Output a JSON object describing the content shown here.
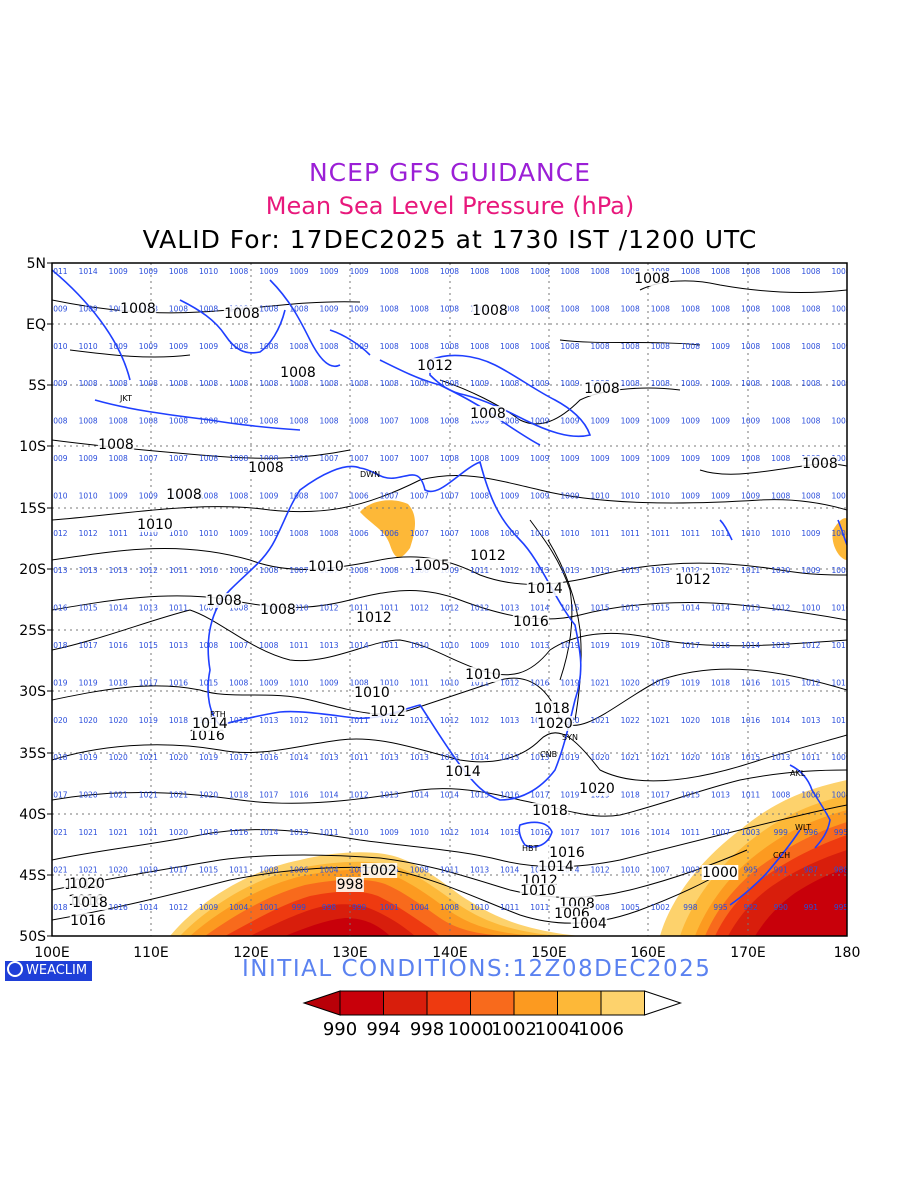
{
  "header": {
    "title": "NCEP GFS GUIDANCE",
    "subtitle": "Mean Sea Level Pressure (hPa)",
    "valid": "VALID For: 17DEC2025 at 1730 IST /1200 UTC"
  },
  "footer": {
    "credit": "WEACLIM",
    "initial_conditions": "INITIAL  CONDITIONS:12Z08DEC2025"
  },
  "axes": {
    "lat_labels": [
      "5N",
      "EQ",
      "5S",
      "10S",
      "15S",
      "20S",
      "25S",
      "30S",
      "35S",
      "40S",
      "45S",
      "50S"
    ],
    "lon_labels": [
      "100E",
      "110E",
      "120E",
      "130E",
      "140E",
      "150E",
      "160E",
      "170E",
      "180"
    ]
  },
  "colorbar": {
    "labels": [
      "990",
      "994",
      "998",
      "1000",
      "1002",
      "1004",
      "1006"
    ],
    "colors": [
      "#c8000a",
      "#d81e0c",
      "#ee3a10",
      "#f86a1c",
      "#fc9a20",
      "#fdb838",
      "#fdd26c"
    ]
  },
  "colors": {
    "coast": "#1f3fff",
    "grid_value_text": "#2a4ddb",
    "contour": "#000000"
  },
  "contour_labels": [
    "1008",
    "1008",
    "1008",
    "1008",
    "1008",
    "1008",
    "1008",
    "1012",
    "1008",
    "1008",
    "1010",
    "1008",
    "1008",
    "1005",
    "1012",
    "1010",
    "1014",
    "1012",
    "1012",
    "1016",
    "1008",
    "1008",
    "1010",
    "1010",
    "1012",
    "1018",
    "1020",
    "1014",
    "1016",
    "1014",
    "1018",
    "1016",
    "1014",
    "1020",
    "1016",
    "1014",
    "1012",
    "1010",
    "1008",
    "1006",
    "1004",
    "1002",
    "1000",
    "998",
    "1020",
    "1018",
    "1016",
    "1000"
  ],
  "place_labels": [
    "JKT",
    "DWN",
    "PTH",
    "SYN",
    "CNB",
    "HBT",
    "AKL",
    "WLT",
    "CCH"
  ],
  "grid_value_rows": [
    [
      "1011",
      "1014",
      "1009",
      "1009",
      "1008",
      "1010",
      "1008",
      "1009",
      "1009",
      "1009",
      "1009",
      "1008",
      "1008",
      "1008",
      "1008",
      "1008",
      "1008",
      "1008",
      "1008",
      "1008",
      "1008",
      "1008",
      "1008",
      "1008",
      "1008",
      "1008",
      "1008"
    ],
    [
      "1009",
      "1009",
      "1008",
      "1008",
      "1008",
      "1008",
      "1008",
      "1008",
      "1008",
      "1009",
      "1009",
      "1008",
      "1008",
      "1008",
      "1008",
      "1008",
      "1008",
      "1008",
      "1008",
      "1008",
      "1008",
      "1008",
      "1008",
      "1008",
      "1008",
      "1008",
      "1008"
    ],
    [
      "1010",
      "1010",
      "1009",
      "1009",
      "1009",
      "1009",
      "1008",
      "1008",
      "1008",
      "1008",
      "1009",
      "1008",
      "1008",
      "1008",
      "1008",
      "1008",
      "1008",
      "1008",
      "1008",
      "1008",
      "1008",
      "1008",
      "1009",
      "1008",
      "1008",
      "1008",
      "1009"
    ],
    [
      "1009",
      "1008",
      "1008",
      "1008",
      "1008",
      "1008",
      "1008",
      "1008",
      "1008",
      "1008",
      "1008",
      "1008",
      "1008",
      "1008",
      "1009",
      "1008",
      "1009",
      "1009",
      "1008",
      "1008",
      "1008",
      "1009",
      "1009",
      "1008",
      "1008",
      "1008",
      "1009"
    ],
    [
      "1008",
      "1008",
      "1008",
      "1008",
      "1008",
      "1008",
      "1008",
      "1008",
      "1008",
      "1008",
      "1008",
      "1007",
      "1008",
      "1008",
      "1009",
      "1008",
      "1009",
      "1009",
      "1009",
      "1009",
      "1009",
      "1009",
      "1009",
      "1009",
      "1008",
      "1008",
      "1008"
    ],
    [
      "1009",
      "1009",
      "1008",
      "1007",
      "1007",
      "1008",
      "1008",
      "1008",
      "1008",
      "1007",
      "1007",
      "1007",
      "1007",
      "1008",
      "1008",
      "1009",
      "1009",
      "1009",
      "1009",
      "1009",
      "1009",
      "1009",
      "1009",
      "1008",
      "1008",
      "1008",
      "1008"
    ],
    [
      "1010",
      "1010",
      "1009",
      "1009",
      "1009",
      "1008",
      "1008",
      "1009",
      "1008",
      "1007",
      "1006",
      "1007",
      "1007",
      "1007",
      "1008",
      "1009",
      "1009",
      "1009",
      "1010",
      "1010",
      "1010",
      "1009",
      "1009",
      "1009",
      "1008",
      "1008",
      "1007"
    ],
    [
      "1012",
      "1012",
      "1011",
      "1010",
      "1010",
      "1010",
      "1009",
      "1009",
      "1008",
      "1008",
      "1006",
      "1006",
      "1007",
      "1007",
      "1008",
      "1009",
      "1010",
      "1010",
      "1011",
      "1011",
      "1011",
      "1011",
      "1011",
      "1010",
      "1010",
      "1009",
      "1008"
    ],
    [
      "1013",
      "1013",
      "1013",
      "1012",
      "1011",
      "1010",
      "1009",
      "1008",
      "1007",
      "1007",
      "1008",
      "1008",
      "1008",
      "1009",
      "1011",
      "1012",
      "1013",
      "1013",
      "1013",
      "1013",
      "1013",
      "1012",
      "1012",
      "1011",
      "1010",
      "1009",
      "1008"
    ],
    [
      "1016",
      "1015",
      "1014",
      "1013",
      "1011",
      "1007",
      "1008",
      "1009",
      "1010",
      "1012",
      "1011",
      "1011",
      "1012",
      "1012",
      "1012",
      "1013",
      "1014",
      "1015",
      "1015",
      "1015",
      "1015",
      "1014",
      "1014",
      "1013",
      "1012",
      "1010",
      "1010"
    ],
    [
      "1018",
      "1017",
      "1016",
      "1015",
      "1013",
      "1008",
      "1007",
      "1008",
      "1011",
      "1013",
      "1014",
      "1011",
      "1010",
      "1010",
      "1009",
      "1010",
      "1013",
      "1019",
      "1019",
      "1019",
      "1018",
      "1017",
      "1016",
      "1014",
      "1013",
      "1012",
      "1011"
    ],
    [
      "1019",
      "1019",
      "1018",
      "1017",
      "1016",
      "1015",
      "1008",
      "1009",
      "1010",
      "1009",
      "1008",
      "1010",
      "1011",
      "1010",
      "1011",
      "1012",
      "1016",
      "1019",
      "1021",
      "1020",
      "1019",
      "1019",
      "1018",
      "1016",
      "1015",
      "1012",
      "1011"
    ],
    [
      "1020",
      "1020",
      "1020",
      "1019",
      "1018",
      "1017",
      "1015",
      "1013",
      "1012",
      "1011",
      "1011",
      "1012",
      "1012",
      "1012",
      "1012",
      "1013",
      "1016",
      "1020",
      "1021",
      "1022",
      "1021",
      "1020",
      "1018",
      "1016",
      "1014",
      "1013",
      "1011"
    ],
    [
      "1018",
      "1019",
      "1020",
      "1021",
      "1020",
      "1019",
      "1017",
      "1016",
      "1014",
      "1013",
      "1011",
      "1013",
      "1013",
      "1013",
      "1014",
      "1013",
      "1013",
      "1019",
      "1020",
      "1021",
      "1021",
      "1020",
      "1018",
      "1015",
      "1013",
      "1011",
      "1009"
    ],
    [
      "1017",
      "1020",
      "1021",
      "1021",
      "1021",
      "1020",
      "1018",
      "1017",
      "1016",
      "1014",
      "1012",
      "1013",
      "1014",
      "1014",
      "1015",
      "1016",
      "1017",
      "1019",
      "1019",
      "1018",
      "1017",
      "1015",
      "1013",
      "1011",
      "1008",
      "1006",
      "1004"
    ],
    [
      "1021",
      "1021",
      "1021",
      "1021",
      "1020",
      "1018",
      "1016",
      "1014",
      "1013",
      "1011",
      "1010",
      "1009",
      "1010",
      "1012",
      "1014",
      "1015",
      "1016",
      "1017",
      "1017",
      "1016",
      "1014",
      "1011",
      "1007",
      "1003",
      "999",
      "996",
      "995"
    ],
    [
      "1021",
      "1021",
      "1020",
      "1019",
      "1017",
      "1015",
      "1011",
      "1008",
      "1006",
      "1004",
      "1004",
      "1005",
      "1008",
      "1011",
      "1013",
      "1014",
      "1015",
      "1014",
      "1012",
      "1010",
      "1007",
      "1003",
      "999",
      "995",
      "991",
      "987",
      "988"
    ],
    [
      "1018",
      "1018",
      "1016",
      "1014",
      "1012",
      "1009",
      "1004",
      "1001",
      "999",
      "998",
      "999",
      "1001",
      "1004",
      "1008",
      "1010",
      "1011",
      "1011",
      "1010",
      "1008",
      "1005",
      "1002",
      "998",
      "995",
      "992",
      "990",
      "991",
      "995"
    ]
  ]
}
